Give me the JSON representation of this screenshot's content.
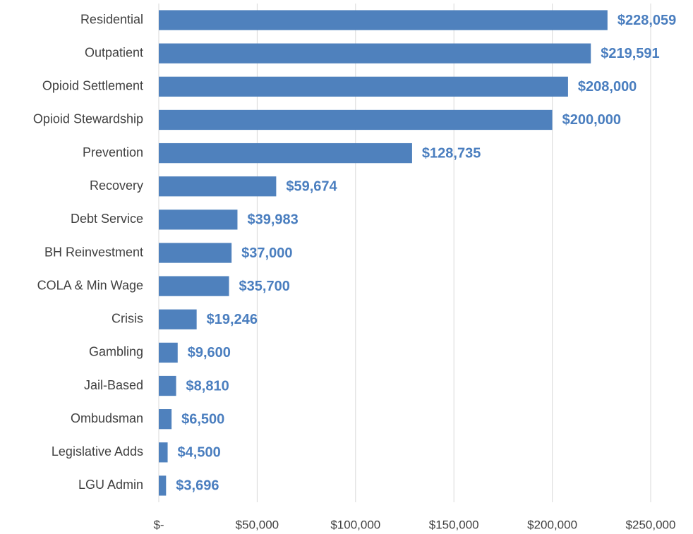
{
  "chart_data": {
    "type": "hbar",
    "categories": [
      "Residential",
      "Outpatient",
      "Opioid Settlement",
      "Opioid Stewardship",
      "Prevention",
      "Recovery",
      "Debt Service",
      "BH Reinvestment",
      "COLA & Min Wage",
      "Crisis",
      "Gambling",
      "Jail-Based",
      "Ombudsman",
      "Legislative Adds",
      "LGU Admin"
    ],
    "values": [
      228059,
      219591,
      208000,
      200000,
      128735,
      59674,
      39983,
      37000,
      35700,
      19246,
      9600,
      8810,
      6500,
      4500,
      3696
    ],
    "value_labels": [
      "$228,059",
      "$219,591",
      "$208,000",
      "$200,000",
      "$128,735",
      "$59,674",
      "$39,983",
      "$37,000",
      "$35,700",
      "$19,246",
      "$9,600",
      "$8,810",
      "$6,500",
      "$4,500",
      "$3,696"
    ],
    "color": "#4f81bd",
    "xlim": [
      0,
      250000
    ],
    "xticks": [
      {
        "value": 0,
        "label": "$-"
      },
      {
        "value": 50000,
        "label": "$50,000"
      },
      {
        "value": 100000,
        "label": "$100,000"
      },
      {
        "value": 150000,
        "label": "$150,000"
      },
      {
        "value": 200000,
        "label": "$200,000"
      },
      {
        "value": 250000,
        "label": "$250,000"
      }
    ],
    "grid": true
  }
}
